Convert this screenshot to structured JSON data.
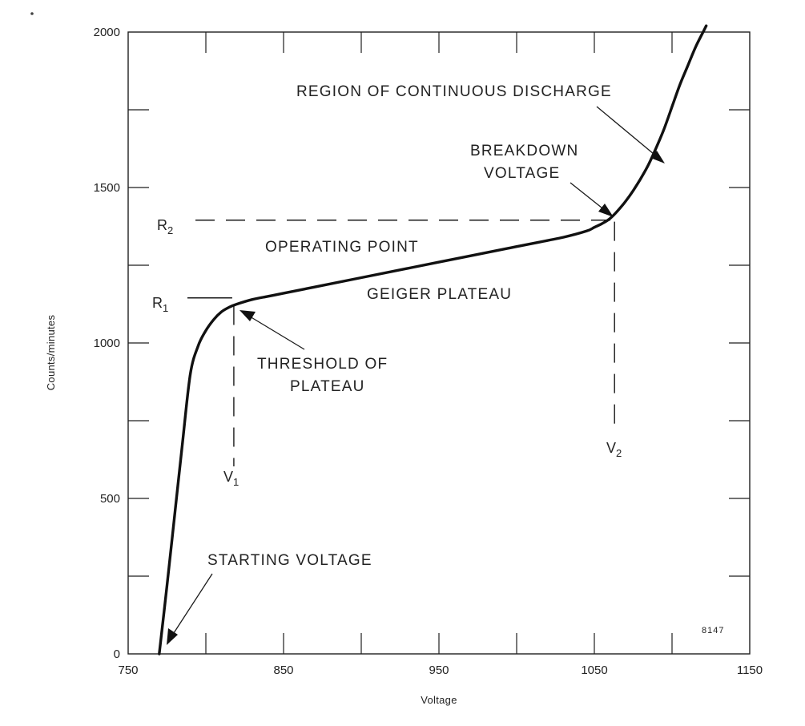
{
  "chart_data": {
    "type": "line",
    "title": "",
    "xlabel": "Voltage",
    "ylabel": "Counts/minutes",
    "xlim": [
      750,
      1150
    ],
    "ylim": [
      0,
      2000
    ],
    "x_tick_labels": [
      "750",
      "850",
      "950",
      "1050",
      "1150"
    ],
    "y_tick_labels": [
      "0",
      "500",
      "1000",
      "1500",
      "2000"
    ],
    "grid": false,
    "legend": "none",
    "series": [
      {
        "x": [
          770,
          775,
          780,
          785,
          790,
          795,
          800,
          805,
          810,
          815,
          820,
          830,
          840,
          850,
          870,
          900,
          950,
          1000,
          1030,
          1045,
          1050,
          1055,
          1060,
          1065,
          1070,
          1075,
          1080,
          1085,
          1090,
          1095,
          1100,
          1105,
          1110,
          1115,
          1120,
          1122
        ],
        "y": [
          0,
          220,
          450,
          680,
          900,
          990,
          1040,
          1075,
          1100,
          1115,
          1125,
          1140,
          1150,
          1160,
          1180,
          1210,
          1260,
          1310,
          1340,
          1360,
          1372,
          1384,
          1400,
          1425,
          1455,
          1490,
          1530,
          1575,
          1630,
          1690,
          1760,
          1830,
          1890,
          1950,
          2000,
          2020
        ]
      }
    ],
    "markers": {
      "r1": {
        "label": "R",
        "sub": "1",
        "value": 1145
      },
      "r2": {
        "label": "R",
        "sub": "2",
        "value": 1395
      },
      "v1": {
        "label": "V",
        "sub": "1",
        "value": 818
      },
      "v2": {
        "label": "V",
        "sub": "2",
        "value": 1063
      }
    },
    "annotations": {
      "continuous_discharge": "REGION OF CONTINUOUS DISCHARGE",
      "breakdown_line1": "BREAKDOWN",
      "breakdown_line2": "VOLTAGE",
      "operating_point": "OPERATING POINT",
      "geiger_plateau": "GEIGER PLATEAU",
      "threshold_line1": "THRESHOLD OF",
      "threshold_line2": "PLATEAU",
      "starting_voltage": "STARTING VOLTAGE"
    },
    "figure_number": "8147"
  }
}
